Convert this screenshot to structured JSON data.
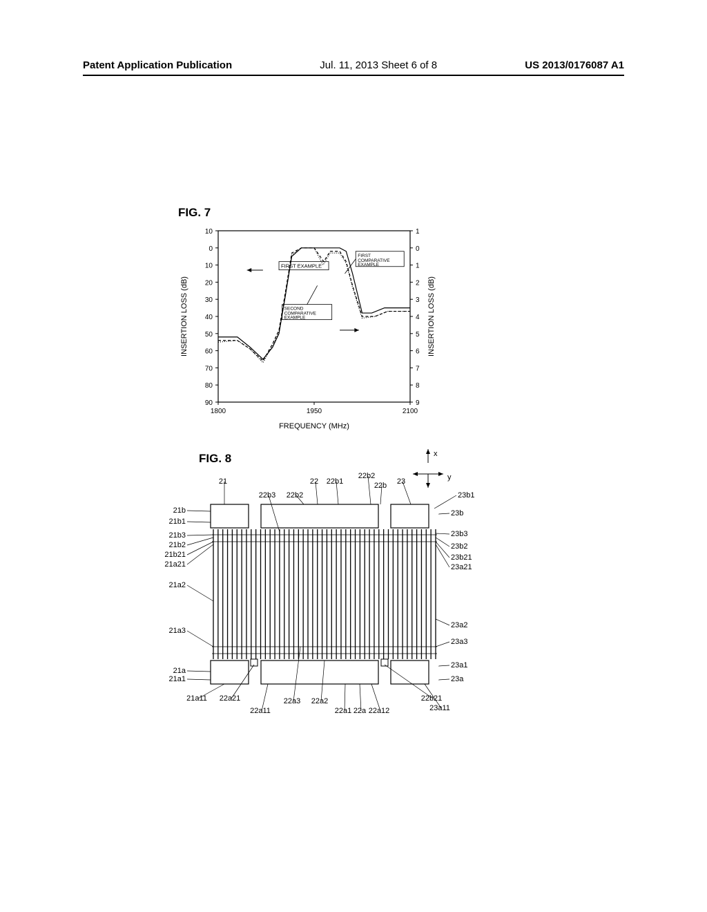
{
  "header": {
    "left": "Patent Application Publication",
    "center": "Jul. 11, 2013  Sheet 6 of 8",
    "right": "US 2013/0176087 A1"
  },
  "fig7": {
    "title": "FIG. 7",
    "xlabel": "FREQUENCY (MHz)",
    "ylabel_left": "INSERTION LOSS (dB)",
    "ylabel_right": "INSERTION LOSS (dB)",
    "xlim": [
      1800,
      2100
    ],
    "ylim_left": [
      90,
      10
    ],
    "ylim_right": [
      9,
      1
    ],
    "xticks": [
      1800,
      1950,
      2100
    ],
    "yticks_left": [
      10,
      0,
      10,
      20,
      30,
      40,
      50,
      60,
      70,
      80,
      90
    ],
    "yticks_right": [
      1,
      0,
      1,
      2,
      3,
      4,
      5,
      6,
      7,
      8,
      9
    ],
    "axis_color": "#000000",
    "background_color": "#ffffff",
    "curves": {
      "first_example": {
        "label": "FIRST EXAMPLE",
        "style": "solid",
        "color": "#000000",
        "points": [
          [
            1800,
            52
          ],
          [
            1830,
            52
          ],
          [
            1850,
            58
          ],
          [
            1870,
            65
          ],
          [
            1885,
            58
          ],
          [
            1895,
            50
          ],
          [
            1905,
            28
          ],
          [
            1915,
            5
          ],
          [
            1930,
            0
          ],
          [
            1950,
            0
          ],
          [
            1970,
            0
          ],
          [
            1990,
            0
          ],
          [
            2000,
            2
          ],
          [
            2010,
            15
          ],
          [
            2025,
            38
          ],
          [
            2040,
            38
          ],
          [
            2060,
            35
          ],
          [
            2080,
            35
          ],
          [
            2100,
            35
          ]
        ]
      },
      "first_comparative": {
        "label": "FIRST COMPARATIVE EXAMPLE",
        "style": "dashed",
        "color": "#000000",
        "points": [
          [
            1800,
            54
          ],
          [
            1830,
            54
          ],
          [
            1850,
            59
          ],
          [
            1870,
            66
          ],
          [
            1885,
            56
          ],
          [
            1895,
            48
          ],
          [
            1905,
            26
          ],
          [
            1915,
            3
          ],
          [
            1930,
            0
          ],
          [
            1950,
            0
          ],
          [
            1965,
            8
          ],
          [
            1975,
            2
          ],
          [
            1990,
            2
          ],
          [
            2000,
            8
          ],
          [
            2010,
            22
          ],
          [
            2025,
            40
          ],
          [
            2045,
            40
          ],
          [
            2065,
            37
          ],
          [
            2085,
            37
          ],
          [
            2100,
            37
          ]
        ]
      },
      "second_comparative": {
        "label": "SECOND COMPARATIVE EXAMPLE",
        "style": "dotted",
        "color": "#000000",
        "points": [
          [
            1800,
            55
          ],
          [
            1830,
            54
          ],
          [
            1850,
            59
          ],
          [
            1870,
            67
          ],
          [
            1885,
            57
          ],
          [
            1895,
            49
          ],
          [
            1905,
            27
          ],
          [
            1915,
            4
          ],
          [
            1930,
            0
          ],
          [
            1950,
            0
          ],
          [
            1964,
            10
          ],
          [
            1975,
            3
          ],
          [
            1990,
            3
          ],
          [
            2000,
            9
          ],
          [
            2010,
            23
          ],
          [
            2025,
            41
          ],
          [
            2045,
            40
          ],
          [
            2065,
            37
          ],
          [
            2085,
            37
          ],
          [
            2100,
            37
          ]
        ]
      }
    }
  },
  "fig8": {
    "title": "FIG. 8",
    "axes_label": {
      "x": "x",
      "y": "y"
    },
    "labels_top": [
      "21",
      "22",
      "22b1",
      "22b2",
      "22b",
      "23"
    ],
    "labels_top2": [
      "22b3",
      "22b2",
      "23b1"
    ],
    "labels_left": [
      "21b",
      "21b1",
      "21b3",
      "21b2",
      "21b21",
      "21a21",
      "21a2",
      "21a3",
      "21a",
      "21a1",
      "21a11",
      "22a21"
    ],
    "labels_right": [
      "23b",
      "23b3",
      "23b2",
      "23b21",
      "23a21",
      "23a2",
      "23a3",
      "23a1",
      "23a",
      "22b21",
      "23a11"
    ],
    "labels_bottom": [
      "22a11",
      "22a3",
      "22a2",
      "22a1",
      "22a",
      "22a12"
    ],
    "idt_count": 48,
    "colors": {
      "line": "#000000",
      "bg": "#ffffff"
    }
  }
}
